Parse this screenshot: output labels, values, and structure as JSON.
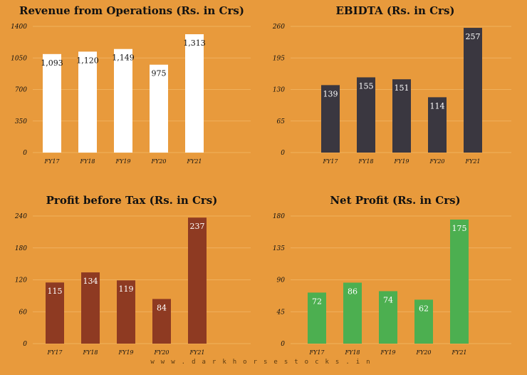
{
  "colors": {
    "background": "#E89A3C",
    "grid": "#f2b868",
    "revenue_bar": "#FFFFFF",
    "ebidta_bar": "#3A3740",
    "pbt_bar": "#8E3A22",
    "net_profit_bar": "#4CAF50"
  },
  "watermark": "www.darkhorsestocks.in",
  "chart_data": [
    {
      "id": "revenue",
      "type": "bar",
      "title": "Revenue from Operations (Rs. in Crs)",
      "categories": [
        "FY17",
        "FY18",
        "FY19",
        "FY20",
        "FY21"
      ],
      "values": [
        1093,
        1120,
        1149,
        975,
        1313
      ],
      "labels": [
        "1,093",
        "1,120",
        "1,149",
        "975",
        "1,313"
      ],
      "yticks": [
        0,
        350,
        700,
        1050,
        1400
      ],
      "ylim": [
        0,
        1400
      ],
      "bar_color": "#FFFFFF",
      "label_color": "#111111"
    },
    {
      "id": "ebidta",
      "type": "bar",
      "title": "EBIDTA (Rs. in Crs)",
      "categories": [
        "FY17",
        "FY18",
        "FY19",
        "FY20",
        "FY21"
      ],
      "values": [
        139,
        155,
        151,
        114,
        257
      ],
      "labels": [
        "139",
        "155",
        "151",
        "114",
        "257"
      ],
      "yticks": [
        0,
        65,
        130,
        195,
        260
      ],
      "ylim": [
        0,
        260
      ],
      "bar_color": "#3A3740",
      "label_color": "#FFFFFF"
    },
    {
      "id": "pbt",
      "type": "bar",
      "title": "Profit before Tax (Rs. in Crs)",
      "categories": [
        "FY17",
        "FY18",
        "FY19",
        "FY20",
        "FY21"
      ],
      "values": [
        115,
        134,
        119,
        84,
        237
      ],
      "labels": [
        "115",
        "134",
        "119",
        "84",
        "237"
      ],
      "yticks": [
        0,
        60,
        120,
        180,
        240
      ],
      "ylim": [
        0,
        240
      ],
      "bar_color": "#8E3A22",
      "label_color": "#FFFFFF"
    },
    {
      "id": "net-profit",
      "type": "bar",
      "title": "Net Profit (Rs. in Crs)",
      "categories": [
        "FY17",
        "FY18",
        "FY19",
        "FY20",
        "FY21"
      ],
      "values": [
        72,
        86,
        74,
        62,
        175
      ],
      "labels": [
        "72",
        "86",
        "74",
        "62",
        "175"
      ],
      "yticks": [
        0,
        45,
        90,
        135,
        180
      ],
      "ylim": [
        0,
        180
      ],
      "bar_color": "#4CAF50",
      "label_color": "#FFFFFF"
    }
  ]
}
